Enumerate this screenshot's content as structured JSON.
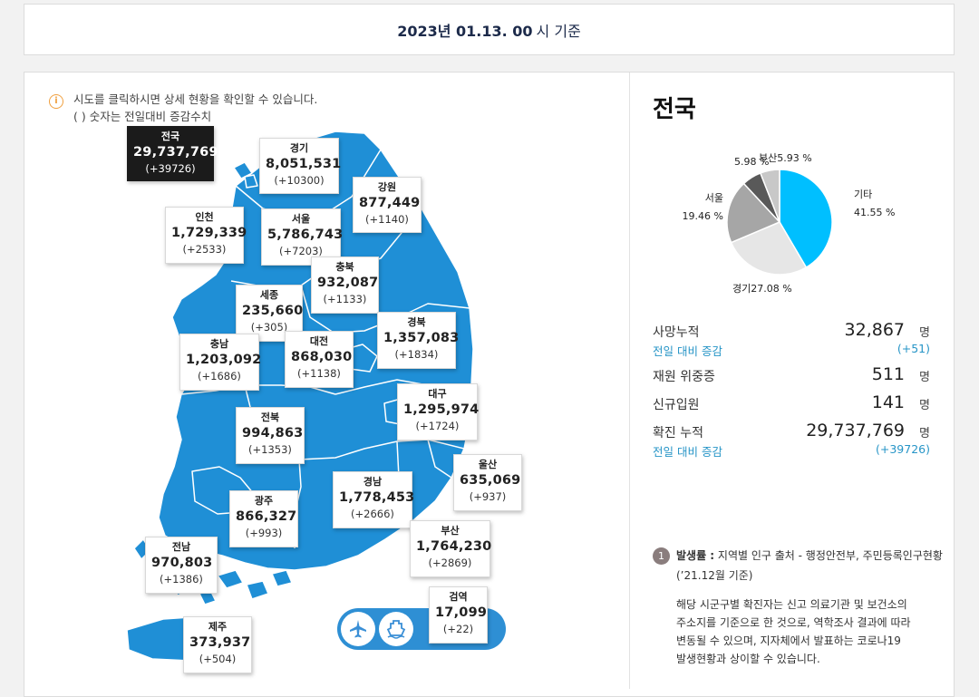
{
  "header": {
    "date_bold": "2023년 01.13. 00",
    "date_rest": "시 기준"
  },
  "notice": {
    "icon": "info-icon",
    "line1": "시도를 클릭하시면 상세 현황을 확인할 수 있습니다.",
    "line2": "( ) 숫자는 전일대비 증감수치"
  },
  "regions": [
    {
      "id": "national",
      "name": "전국",
      "value": "29,737,769",
      "delta": "(+39726)"
    },
    {
      "id": "gyeonggi",
      "name": "경기",
      "value": "8,051,531",
      "delta": "(+10300)"
    },
    {
      "id": "gangwon",
      "name": "강원",
      "value": "877,449",
      "delta": "(+1140)"
    },
    {
      "id": "incheon",
      "name": "인천",
      "value": "1,729,339",
      "delta": "(+2533)"
    },
    {
      "id": "seoul",
      "name": "서울",
      "value": "5,786,743",
      "delta": "(+7203)"
    },
    {
      "id": "chungbuk",
      "name": "충북",
      "value": "932,087",
      "delta": "(+1133)"
    },
    {
      "id": "sejong",
      "name": "세종",
      "value": "235,660",
      "delta": "(+305)"
    },
    {
      "id": "gyeongbuk",
      "name": "경북",
      "value": "1,357,083",
      "delta": "(+1834)"
    },
    {
      "id": "chungnam",
      "name": "충남",
      "value": "1,203,092",
      "delta": "(+1686)"
    },
    {
      "id": "daejeon",
      "name": "대전",
      "value": "868,030",
      "delta": "(+1138)"
    },
    {
      "id": "daegu",
      "name": "대구",
      "value": "1,295,974",
      "delta": "(+1724)"
    },
    {
      "id": "jeonbuk",
      "name": "전북",
      "value": "994,863",
      "delta": "(+1353)"
    },
    {
      "id": "ulsan",
      "name": "울산",
      "value": "635,069",
      "delta": "(+937)"
    },
    {
      "id": "gyeongnam",
      "name": "경남",
      "value": "1,778,453",
      "delta": "(+2666)"
    },
    {
      "id": "gwangju",
      "name": "광주",
      "value": "866,327",
      "delta": "(+993)"
    },
    {
      "id": "busan",
      "name": "부산",
      "value": "1,764,230",
      "delta": "(+2869)"
    },
    {
      "id": "jeonnam",
      "name": "전남",
      "value": "970,803",
      "delta": "(+1386)"
    },
    {
      "id": "quarantine",
      "name": "검역",
      "value": "17,099",
      "delta": "(+22)"
    },
    {
      "id": "jeju",
      "name": "제주",
      "value": "373,937",
      "delta": "(+504)"
    }
  ],
  "transport_icons": [
    "airplane-icon",
    "ship-icon"
  ],
  "summary": {
    "title": "전국",
    "pie": {
      "slices": [
        {
          "label": "기타",
          "pct": "41.55 %",
          "value": 41.55,
          "color": "#00bfff"
        },
        {
          "label": "경기",
          "pct": "27.08 %",
          "value": 27.08,
          "color": "#e6e6e6"
        },
        {
          "label": "서울",
          "pct": "19.46 %",
          "value": 19.46,
          "color": "#a6a6a6"
        },
        {
          "label": "",
          "pct": "5.98 %",
          "value": 5.98,
          "color": "#595959"
        },
        {
          "label": "부산",
          "pct": "5.93 %",
          "value": 5.93,
          "color": "#c8c8c8"
        }
      ]
    },
    "deaths_label": "사망누적",
    "deaths_value": "32,867",
    "unit": "명",
    "deaths_sub_label": "전일 대비 증감",
    "deaths_sub_value": "(+51)",
    "critical_label": "재원 위중증",
    "critical_value": "511",
    "admit_label": "신규입원",
    "admit_value": "141",
    "confirmed_label": "확진 누적",
    "confirmed_value": "29,737,769",
    "confirmed_sub_label": "전일 대비 증감",
    "confirmed_sub_value": "(+39726)"
  },
  "footnote": {
    "num": "1",
    "bold": "발생률 :",
    "rest": " 지역별 인구 출처 - 행정안전부, 주민등록인구현황",
    "line2": "(’21.12월 기준)",
    "para": [
      "해당 시군구별 확진자는 신고 의료기관 및 보건소의",
      "주소지를 기준으로 한 것으로, 역학조사 결과에 따라",
      "변동될 수 있으며, 지자체에서 발표하는 코로나19",
      "발생현황과 상이할 수 있습니다."
    ]
  }
}
